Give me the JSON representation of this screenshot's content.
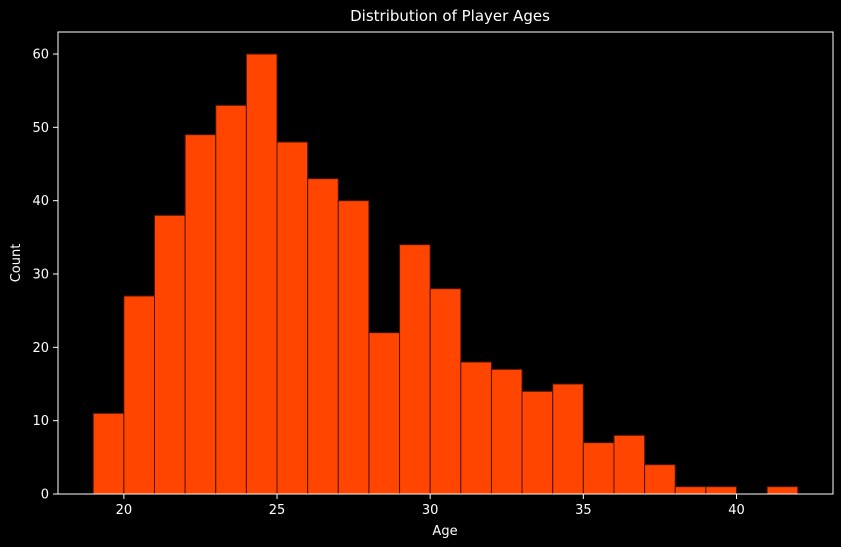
{
  "chart_data": {
    "type": "bar",
    "title": "Distribution of Player Ages",
    "xlabel": "Age",
    "ylabel": "Count",
    "bin_width": 1,
    "bins": [
      {
        "start": 19,
        "end": 20,
        "count": 11
      },
      {
        "start": 20,
        "end": 21,
        "count": 27
      },
      {
        "start": 21,
        "end": 22,
        "count": 38
      },
      {
        "start": 22,
        "end": 23,
        "count": 49
      },
      {
        "start": 23,
        "end": 24,
        "count": 53
      },
      {
        "start": 24,
        "end": 25,
        "count": 60
      },
      {
        "start": 25,
        "end": 26,
        "count": 48
      },
      {
        "start": 26,
        "end": 27,
        "count": 43
      },
      {
        "start": 27,
        "end": 28,
        "count": 40
      },
      {
        "start": 28,
        "end": 29,
        "count": 22
      },
      {
        "start": 29,
        "end": 30,
        "count": 34
      },
      {
        "start": 30,
        "end": 31,
        "count": 28
      },
      {
        "start": 31,
        "end": 32,
        "count": 18
      },
      {
        "start": 32,
        "end": 33,
        "count": 17
      },
      {
        "start": 33,
        "end": 34,
        "count": 14
      },
      {
        "start": 34,
        "end": 35,
        "count": 15
      },
      {
        "start": 35,
        "end": 36,
        "count": 7
      },
      {
        "start": 36,
        "end": 37,
        "count": 8
      },
      {
        "start": 37,
        "end": 38,
        "count": 4
      },
      {
        "start": 38,
        "end": 39,
        "count": 1
      },
      {
        "start": 39,
        "end": 40,
        "count": 1
      },
      {
        "start": 41,
        "end": 42,
        "count": 1
      }
    ],
    "xlim": [
      17.85,
      43.15
    ],
    "ylim": [
      0,
      63
    ],
    "xticks": [
      "20",
      "25",
      "30",
      "35",
      "40"
    ],
    "yticks": [
      "0",
      "10",
      "20",
      "30",
      "40",
      "50",
      "60"
    ],
    "grid": false,
    "bar_color": "#ff4500",
    "edge_color": "#4d1500",
    "background_color": "#000000",
    "axis_color": "#ffffff"
  }
}
